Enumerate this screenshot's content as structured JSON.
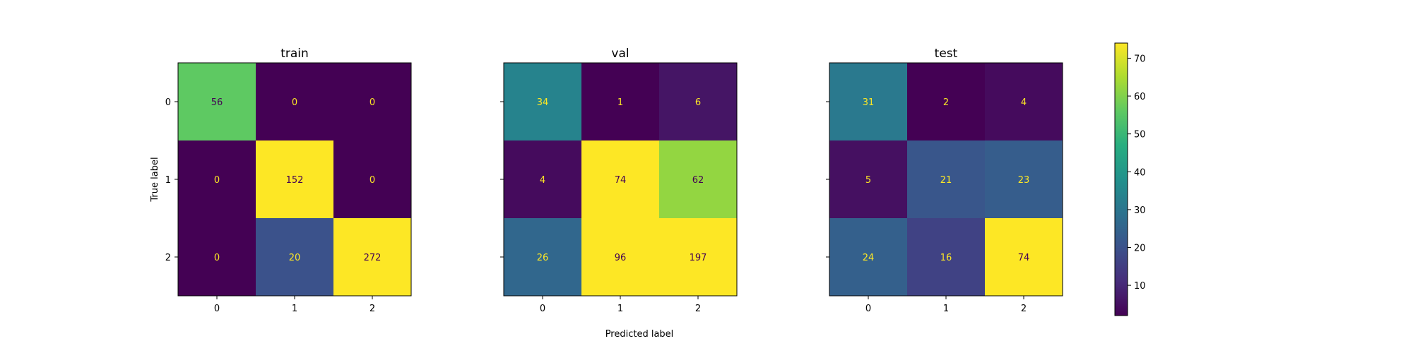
{
  "chart_data": {
    "type": "heatmap",
    "colormap": "viridis",
    "colorbar": {
      "min": 2,
      "max": 74,
      "ticks": [
        10,
        20,
        30,
        40,
        50,
        60,
        70
      ]
    },
    "xlabel": "Predicted label",
    "ylabel": "True label",
    "x_ticks": [
      "0",
      "1",
      "2"
    ],
    "y_ticks": [
      "0",
      "1",
      "2"
    ],
    "panels": [
      {
        "title": "train",
        "matrix": [
          [
            56,
            0,
            0
          ],
          [
            0,
            152,
            0
          ],
          [
            0,
            20,
            272
          ]
        ]
      },
      {
        "title": "val",
        "matrix": [
          [
            34,
            1,
            6
          ],
          [
            4,
            74,
            62
          ],
          [
            26,
            96,
            197
          ]
        ]
      },
      {
        "title": "test",
        "matrix": [
          [
            31,
            2,
            4
          ],
          [
            5,
            21,
            23
          ],
          [
            24,
            16,
            74
          ]
        ]
      }
    ]
  }
}
